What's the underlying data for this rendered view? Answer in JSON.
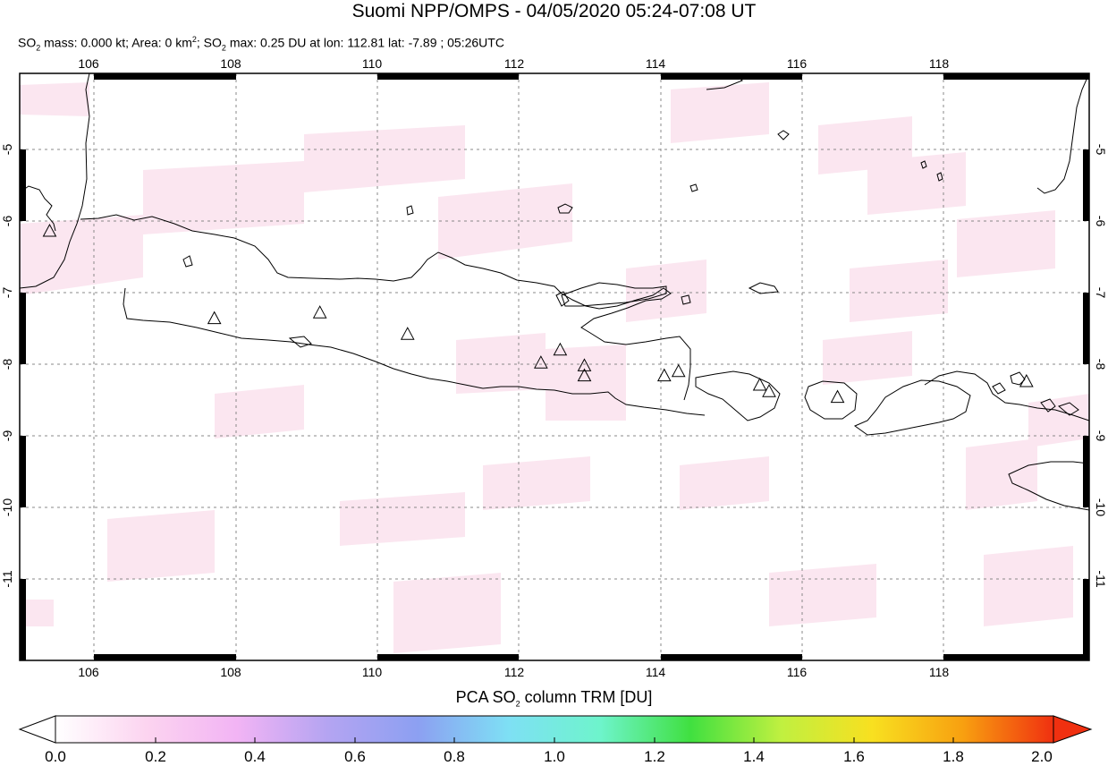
{
  "title": "Suomi NPP/OMPS - 04/05/2020 05:24-07:08 UT",
  "subtitle": {
    "so2_label": "SO",
    "so2_sub": "2",
    "mass_text": " mass: 0.000 kt; Area: 0 km",
    "area_sup": "2",
    "sep": "; SO",
    "max_sub": "2",
    "max_text": " max: 0.25 DU at lon: 112.81 lat: -7.89 ; 05:26UTC"
  },
  "map": {
    "lon_range": [
      105,
      120
    ],
    "lat_range": [
      -12.1,
      -3.9
    ],
    "lon_ticks": [
      "106",
      "108",
      "110",
      "112",
      "114",
      "116",
      "118"
    ],
    "lat_ticks": [
      "-5",
      "-6",
      "-7",
      "-8",
      "-9",
      "-10",
      "-11"
    ],
    "volcanoes": [
      {
        "lon": 105.42,
        "lat": -6.1
      },
      {
        "lon": 107.73,
        "lat": -7.32
      },
      {
        "lon": 109.21,
        "lat": -7.24
      },
      {
        "lon": 110.44,
        "lat": -7.54
      },
      {
        "lon": 112.31,
        "lat": -7.94
      },
      {
        "lon": 112.58,
        "lat": -7.76
      },
      {
        "lon": 112.92,
        "lat": -7.98
      },
      {
        "lon": 112.92,
        "lat": -8.12
      },
      {
        "lon": 114.04,
        "lat": -8.12
      },
      {
        "lon": 114.24,
        "lat": -8.06
      },
      {
        "lon": 115.38,
        "lat": -8.25
      },
      {
        "lon": 115.51,
        "lat": -8.34
      },
      {
        "lon": 116.47,
        "lat": -8.42
      },
      {
        "lon": 119.12,
        "lat": -8.2
      }
    ],
    "so2_pixels_color": "#fbe6f0"
  },
  "colorbar": {
    "label_pre": "PCA SO",
    "label_sub": "2",
    "label_post": " column TRM [DU]",
    "ticks": [
      "0.0",
      "0.2",
      "0.4",
      "0.6",
      "0.8",
      "1.0",
      "1.2",
      "1.4",
      "1.6",
      "1.8",
      "2.0"
    ],
    "stops": [
      "#ffffff",
      "#fcd4f0",
      "#f2b4f4",
      "#b4a4f2",
      "#8ca0f2",
      "#7ee0f4",
      "#6ef4cc",
      "#40e040",
      "#c0f040",
      "#f8e020",
      "#f8a010",
      "#f03010"
    ]
  }
}
